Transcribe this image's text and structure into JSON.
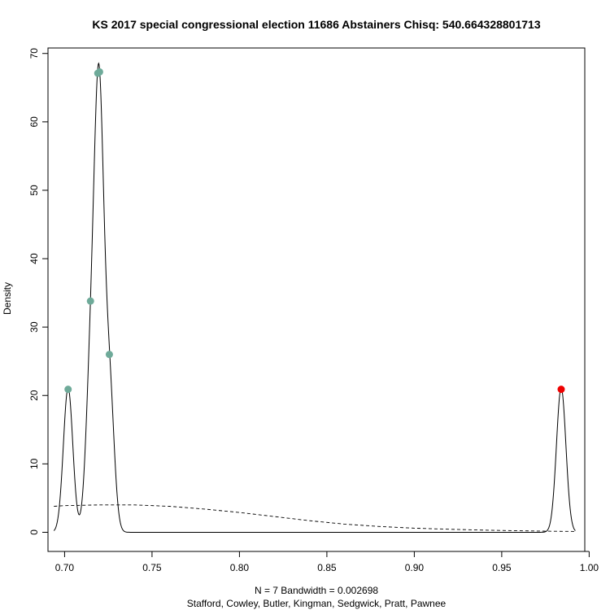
{
  "chart_data": {
    "type": "line",
    "title": "KS 2017 special congressional election 11686 Abstainers Chisq: 540.664328801713",
    "xlabel_line1": "N = 7   Bandwidth = 0.002698",
    "xlabel_line2": "Stafford, Cowley, Butler, Kingman, Sedgwick, Pratt, Pawnee",
    "ylabel": "Density",
    "xlim": [
      0.6905,
      0.9975
    ],
    "ylim": [
      -2.8,
      70.8
    ],
    "x_ticks": [
      0.7,
      0.75,
      0.8,
      0.85,
      0.9,
      0.95,
      1.0
    ],
    "x_tick_labels": [
      "0.70",
      "0.75",
      "0.80",
      "0.85",
      "0.90",
      "0.95",
      "1.00"
    ],
    "y_ticks": [
      0,
      10,
      20,
      30,
      40,
      50,
      60,
      70
    ],
    "y_tick_labels": [
      "0",
      "10",
      "20",
      "30",
      "40",
      "50",
      "60",
      "70"
    ],
    "bandwidth": 0.002698,
    "n": 7,
    "points": [
      {
        "x": 0.702,
        "y": 20.9,
        "color": "#6eaa99"
      },
      {
        "x": 0.7148,
        "y": 33.8,
        "color": "#6eaa99"
      },
      {
        "x": 0.719,
        "y": 67.1,
        "color": "#6eaa99"
      },
      {
        "x": 0.72,
        "y": 67.3,
        "color": "#6eaa99"
      },
      {
        "x": 0.7256,
        "y": 26.0,
        "color": "#6eaa99"
      },
      {
        "x": 0.984,
        "y": 20.9,
        "color": "#ee0000"
      }
    ],
    "kde_centers": [
      0.702,
      0.7148,
      0.719,
      0.72,
      0.72,
      0.7256,
      0.984
    ],
    "kde_range": [
      0.6939,
      0.9921
    ],
    "reference_curve": {
      "style": "dashed",
      "x": [
        0.6939,
        0.7,
        0.72,
        0.74,
        0.76,
        0.78,
        0.8,
        0.82,
        0.84,
        0.86,
        0.88,
        0.9,
        0.92,
        0.94,
        0.96,
        0.98,
        0.9921
      ],
      "y": [
        3.8,
        3.9,
        4.0,
        4.0,
        3.8,
        3.4,
        2.9,
        2.3,
        1.7,
        1.2,
        0.85,
        0.6,
        0.45,
        0.32,
        0.22,
        0.15,
        0.12
      ]
    },
    "grid": false,
    "legend": "none"
  }
}
